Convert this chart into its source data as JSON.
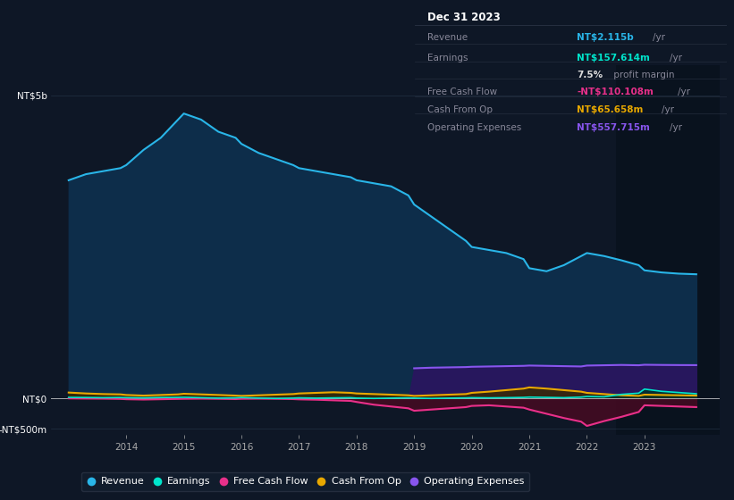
{
  "background_color": "#0e1726",
  "plot_bg_color": "#0e1726",
  "title_box_bg": "#050a10",
  "title_box_border": "#333344",
  "years": [
    2013.0,
    2013.3,
    2013.6,
    2013.9,
    2014.0,
    2014.3,
    2014.6,
    2014.9,
    2015.0,
    2015.3,
    2015.6,
    2015.9,
    2016.0,
    2016.3,
    2016.6,
    2016.9,
    2017.0,
    2017.3,
    2017.6,
    2017.9,
    2018.0,
    2018.3,
    2018.6,
    2018.9,
    2019.0,
    2019.3,
    2019.6,
    2019.9,
    2020.0,
    2020.3,
    2020.6,
    2020.9,
    2021.0,
    2021.3,
    2021.6,
    2021.9,
    2022.0,
    2022.3,
    2022.6,
    2022.9,
    2023.0,
    2023.3,
    2023.6,
    2023.9
  ],
  "revenue": [
    3600,
    3700,
    3750,
    3800,
    3850,
    4100,
    4300,
    4600,
    4700,
    4600,
    4400,
    4300,
    4200,
    4050,
    3950,
    3850,
    3800,
    3750,
    3700,
    3650,
    3600,
    3550,
    3500,
    3350,
    3200,
    3000,
    2800,
    2600,
    2500,
    2450,
    2400,
    2300,
    2150,
    2100,
    2200,
    2350,
    2400,
    2350,
    2280,
    2200,
    2115,
    2080,
    2060,
    2050
  ],
  "earnings": [
    20,
    18,
    15,
    18,
    15,
    12,
    18,
    20,
    22,
    15,
    8,
    12,
    18,
    8,
    3,
    8,
    12,
    8,
    12,
    15,
    8,
    3,
    8,
    12,
    8,
    3,
    8,
    12,
    15,
    12,
    15,
    20,
    25,
    20,
    15,
    25,
    35,
    30,
    70,
    90,
    157,
    120,
    100,
    80
  ],
  "free_cash_flow": [
    5,
    2,
    0,
    -5,
    -10,
    -15,
    -10,
    -5,
    -3,
    0,
    -3,
    -8,
    -3,
    0,
    -3,
    -8,
    -12,
    -18,
    -28,
    -38,
    -55,
    -100,
    -130,
    -160,
    -200,
    -180,
    -160,
    -140,
    -120,
    -110,
    -130,
    -150,
    -180,
    -250,
    -320,
    -380,
    -450,
    -370,
    -300,
    -220,
    -110,
    -120,
    -130,
    -140
  ],
  "cash_from_op": [
    100,
    85,
    75,
    70,
    60,
    50,
    60,
    70,
    80,
    70,
    60,
    50,
    45,
    55,
    65,
    75,
    85,
    95,
    105,
    95,
    85,
    75,
    65,
    55,
    45,
    55,
    65,
    75,
    95,
    115,
    140,
    165,
    185,
    165,
    140,
    115,
    95,
    75,
    55,
    45,
    65,
    60,
    55,
    50
  ],
  "operating_expenses": [
    0,
    0,
    0,
    0,
    0,
    0,
    0,
    0,
    0,
    0,
    0,
    0,
    0,
    0,
    0,
    0,
    0,
    0,
    0,
    0,
    0,
    0,
    0,
    0,
    500,
    510,
    515,
    520,
    525,
    530,
    535,
    540,
    545,
    540,
    535,
    530,
    545,
    550,
    555,
    550,
    558,
    555,
    553,
    552
  ],
  "colors": {
    "revenue": "#29b5e8",
    "earnings": "#00e5cc",
    "free_cash_flow": "#e8308a",
    "cash_from_op": "#e8a800",
    "operating_expenses": "#8855ee"
  },
  "fill_colors": {
    "revenue": "#0d2d4a",
    "earnings": "#003328",
    "free_cash_flow": "#4a0a22",
    "cash_from_op": "#3a2a00",
    "operating_expenses": "#2a1560"
  },
  "ylim": [
    -600,
    5500
  ],
  "ytick_vals": [
    -500,
    0,
    5000
  ],
  "ytick_labels": [
    "-NT$500m",
    "NT$0",
    "NT$5b"
  ],
  "xlim": [
    2012.7,
    2024.3
  ],
  "xtick_vals": [
    2014,
    2015,
    2016,
    2017,
    2018,
    2019,
    2020,
    2021,
    2022,
    2023
  ],
  "xtick_labels": [
    "2014",
    "2015",
    "2016",
    "2017",
    "2018",
    "2019",
    "2020",
    "2021",
    "2022",
    "2023"
  ],
  "shaded_right_start": 2022.5,
  "legend_items": [
    {
      "label": "Revenue",
      "color": "#29b5e8"
    },
    {
      "label": "Earnings",
      "color": "#00e5cc"
    },
    {
      "label": "Free Cash Flow",
      "color": "#e8308a"
    },
    {
      "label": "Cash From Op",
      "color": "#e8a800"
    },
    {
      "label": "Operating Expenses",
      "color": "#8855ee"
    }
  ],
  "info_box": {
    "date": "Dec 31 2023",
    "rows": [
      {
        "label": "Revenue",
        "value": "NT$2.115b",
        "unit": "/yr",
        "value_color": "#29b5e8"
      },
      {
        "label": "Earnings",
        "value": "NT$157.614m",
        "unit": "/yr",
        "value_color": "#00e5cc"
      },
      {
        "label": "",
        "value": "7.5%",
        "unit": " profit margin",
        "value_color": "#dddddd"
      },
      {
        "label": "Free Cash Flow",
        "value": "-NT$110.108m",
        "unit": "/yr",
        "value_color": "#e8308a"
      },
      {
        "label": "Cash From Op",
        "value": "NT$65.658m",
        "unit": "/yr",
        "value_color": "#e8a800"
      },
      {
        "label": "Operating Expenses",
        "value": "NT$557.715m",
        "unit": "/yr",
        "value_color": "#8855ee"
      }
    ]
  }
}
